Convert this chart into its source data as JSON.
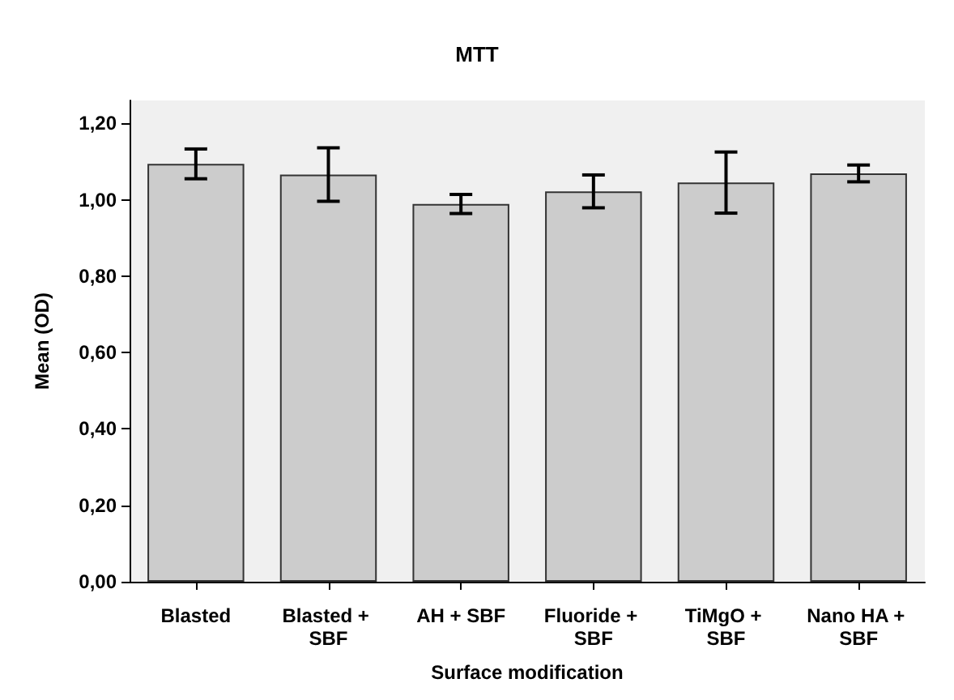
{
  "chart_data": {
    "type": "bar",
    "title": "MTT",
    "xlabel": "Surface modification",
    "ylabel": "Mean (OD)",
    "categories": [
      "Blasted",
      "Blasted + SBF",
      "AH + SBF",
      "Fluoride + SBF",
      "TiMgO + SBF",
      "Nano HA + SBF"
    ],
    "values": [
      1.094,
      1.066,
      0.989,
      1.022,
      1.045,
      1.069
    ],
    "errors": [
      0.039,
      0.07,
      0.025,
      0.043,
      0.08,
      0.022
    ],
    "color": "#cccccc",
    "ylim": [
      0,
      1.26
    ],
    "yticks": [
      {
        "value": 0,
        "label": "0,00"
      },
      {
        "value": 0.2,
        "label": "0,20"
      },
      {
        "value": 0.4,
        "label": "0,40"
      },
      {
        "value": 0.6,
        "label": "0,60"
      },
      {
        "value": 0.8,
        "label": "0,80"
      },
      {
        "value": 1,
        "label": "1,00"
      },
      {
        "value": 1.2,
        "label": "1,20"
      }
    ],
    "grid": false
  }
}
